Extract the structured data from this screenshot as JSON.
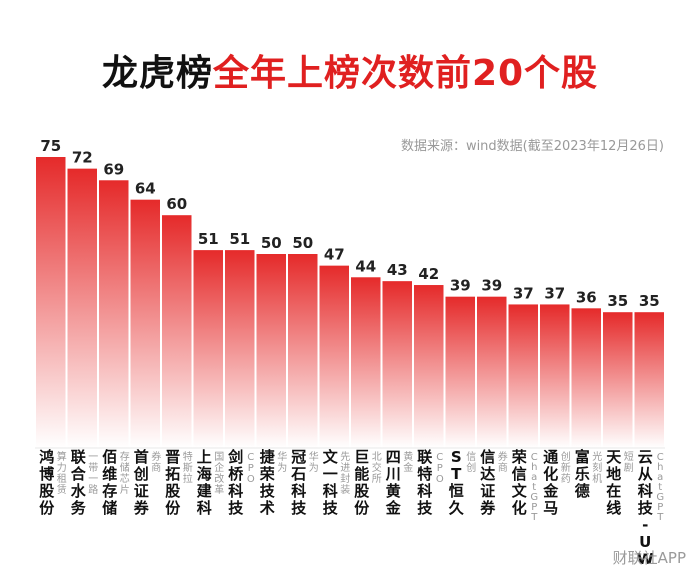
{
  "title": {
    "part1": "龙虎榜",
    "part2": "全年上榜次数前20个股"
  },
  "source": "数据来源：wind数据(截至2023年12月26日)",
  "watermark": "财联社APP",
  "colors": {
    "accent": "#e02020",
    "bar_top": "#e52a2a",
    "bar_bottom": "#ffffff",
    "title_text": "#111111"
  },
  "chart_data": {
    "type": "bar",
    "categories": [
      "鸿博股份",
      "联合水务",
      "佰维存储",
      "首创证券",
      "晋拓股份",
      "上海建科",
      "剑桥科技",
      "捷荣技术",
      "冠石科技",
      "文一科技",
      "巨能股份",
      "四川黄金",
      "联特科技",
      "ST恒久",
      "信达证券",
      "荣信文化",
      "通化金马",
      "富乐德",
      "天地在线",
      "云从科技-UW"
    ],
    "tags": [
      "算力租赁",
      "一带一路",
      "存储芯片",
      "券商",
      "特斯拉",
      "国企改革",
      "CPO",
      "华为",
      "华为",
      "先进封装",
      "北交所",
      "黄金",
      "CPO",
      "信创",
      "券商",
      "ChatGPT",
      "创新药",
      "光刻机",
      "短剧",
      "ChatGPT"
    ],
    "values": [
      75,
      72,
      69,
      64,
      60,
      51,
      51,
      50,
      50,
      47,
      44,
      43,
      42,
      39,
      39,
      37,
      37,
      36,
      35,
      35
    ],
    "ylim": [
      0,
      75
    ],
    "grid": false,
    "legend": "none"
  }
}
